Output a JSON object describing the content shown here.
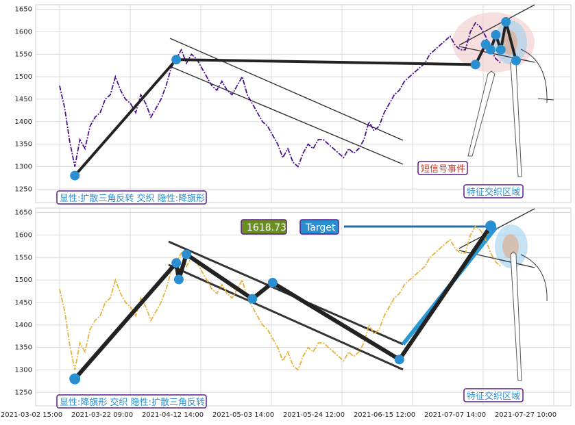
{
  "chart_data": [
    {
      "type": "line",
      "panel": "top",
      "series_color": "#4b0f8c",
      "ylim": [
        1220,
        1660
      ],
      "yticks": [
        1250,
        1300,
        1350,
        1400,
        1450,
        1500,
        1550,
        1600,
        1650
      ],
      "grid": true,
      "x_index_range": [
        0,
        100
      ],
      "series": [
        {
          "x": [
            0,
            1,
            2,
            3,
            4,
            5,
            6,
            7,
            8,
            9,
            10,
            11,
            12,
            13,
            14,
            15,
            16,
            17,
            18,
            19,
            20,
            21,
            22,
            23,
            24,
            25,
            26,
            27,
            28,
            29,
            30,
            31,
            32,
            33,
            34,
            35,
            36,
            37,
            38,
            39,
            40,
            41,
            42,
            43,
            44,
            45,
            46,
            47,
            48,
            49,
            50,
            51,
            52,
            53,
            54,
            55,
            56,
            57,
            58,
            59,
            60,
            61,
            62,
            63,
            64,
            65,
            66,
            67,
            68,
            69,
            70,
            71,
            72,
            73,
            74,
            75,
            76,
            77,
            78,
            79,
            80,
            81,
            82,
            83,
            84,
            85,
            86,
            87
          ],
          "y": [
            1480,
            1430,
            1355,
            1300,
            1360,
            1340,
            1390,
            1410,
            1420,
            1450,
            1460,
            1500,
            1470,
            1450,
            1440,
            1420,
            1460,
            1440,
            1410,
            1430,
            1450,
            1480,
            1520,
            1540,
            1560,
            1530,
            1550,
            1540,
            1520,
            1500,
            1480,
            1470,
            1490,
            1470,
            1460,
            1480,
            1500,
            1460,
            1440,
            1420,
            1400,
            1390,
            1370,
            1350,
            1320,
            1340,
            1310,
            1300,
            1330,
            1350,
            1340,
            1360,
            1360,
            1350,
            1340,
            1330,
            1320,
            1340,
            1330,
            1340,
            1360,
            1400,
            1380,
            1390,
            1420,
            1440,
            1460,
            1470,
            1490,
            1500,
            1510,
            1520,
            1530,
            1550,
            1560,
            1570,
            1580,
            1590,
            1570,
            1560,
            1560,
            1600,
            1620,
            1610,
            1590,
            1560,
            1540,
            1530
          ]
        }
      ],
      "pattern_points": [
        {
          "i": 3,
          "y": 1280
        },
        {
          "i": 23,
          "y": 1538
        },
        {
          "i": 82,
          "y": 1527
        },
        {
          "i": 84,
          "y": 1572
        },
        {
          "i": 85,
          "y": 1560
        },
        {
          "i": 86,
          "y": 1593
        },
        {
          "i": 87,
          "y": 1560
        },
        {
          "i": 88,
          "y": 1622
        },
        {
          "i": 90,
          "y": 1536
        }
      ],
      "annotations": {
        "label_pattern": "显性:扩散三角反转 交织 隐性:降旗形",
        "label_short_event": "短信号事件",
        "label_feature_zone": "特征交织区域"
      }
    },
    {
      "type": "line",
      "panel": "bottom",
      "series_color": "#e8b23a",
      "ylim": [
        1220,
        1660
      ],
      "yticks": [
        1250,
        1300,
        1350,
        1400,
        1450,
        1500,
        1550,
        1600,
        1650
      ],
      "grid": true,
      "x_index_range": [
        0,
        100
      ],
      "series": [
        {
          "x": [
            0,
            1,
            2,
            3,
            4,
            5,
            6,
            7,
            8,
            9,
            10,
            11,
            12,
            13,
            14,
            15,
            16,
            17,
            18,
            19,
            20,
            21,
            22,
            23,
            24,
            25,
            26,
            27,
            28,
            29,
            30,
            31,
            32,
            33,
            34,
            35,
            36,
            37,
            38,
            39,
            40,
            41,
            42,
            43,
            44,
            45,
            46,
            47,
            48,
            49,
            50,
            51,
            52,
            53,
            54,
            55,
            56,
            57,
            58,
            59,
            60,
            61,
            62,
            63,
            64,
            65,
            66,
            67,
            68,
            69,
            70,
            71,
            72,
            73,
            74,
            75,
            76,
            77,
            78,
            79,
            80,
            81,
            82,
            83,
            84,
            85,
            86,
            87
          ],
          "y": [
            1480,
            1430,
            1355,
            1300,
            1360,
            1340,
            1390,
            1410,
            1420,
            1450,
            1460,
            1500,
            1470,
            1450,
            1440,
            1420,
            1460,
            1440,
            1410,
            1430,
            1450,
            1480,
            1520,
            1540,
            1560,
            1530,
            1550,
            1540,
            1520,
            1500,
            1480,
            1470,
            1490,
            1470,
            1460,
            1480,
            1500,
            1460,
            1440,
            1420,
            1400,
            1390,
            1370,
            1350,
            1320,
            1340,
            1310,
            1300,
            1330,
            1350,
            1340,
            1360,
            1360,
            1350,
            1340,
            1330,
            1320,
            1340,
            1330,
            1340,
            1360,
            1400,
            1380,
            1390,
            1420,
            1440,
            1460,
            1470,
            1490,
            1500,
            1510,
            1520,
            1530,
            1550,
            1560,
            1570,
            1580,
            1590,
            1570,
            1560,
            1560,
            1600,
            1620,
            1610,
            1590,
            1560,
            1540,
            1530
          ]
        }
      ],
      "pattern_points": [
        {
          "i": 3,
          "y": 1280
        },
        {
          "i": 23,
          "y": 1538
        },
        {
          "i": 23.5,
          "y": 1501
        },
        {
          "i": 25,
          "y": 1557
        },
        {
          "i": 38,
          "y": 1458
        },
        {
          "i": 42,
          "y": 1494
        },
        {
          "i": 67,
          "y": 1323
        },
        {
          "i": 85,
          "y": 1620
        }
      ],
      "target": {
        "value_text": "1618.73",
        "label": "Target"
      },
      "annotations": {
        "label_pattern": "显性:降旗形 交织 隐性:扩散三角反转",
        "label_feature_zone": "特征交织区域"
      },
      "x_tick_labels": [
        "2021-03-02 15:00",
        "2021-03-22 09:00",
        "2021-04-12 14:00",
        "2021-05-03 14:00",
        "2021-05-24 12:00",
        "2021-06-15 12:00",
        "2021-07-07 14:00",
        "2021-07-27 10:00"
      ]
    }
  ]
}
